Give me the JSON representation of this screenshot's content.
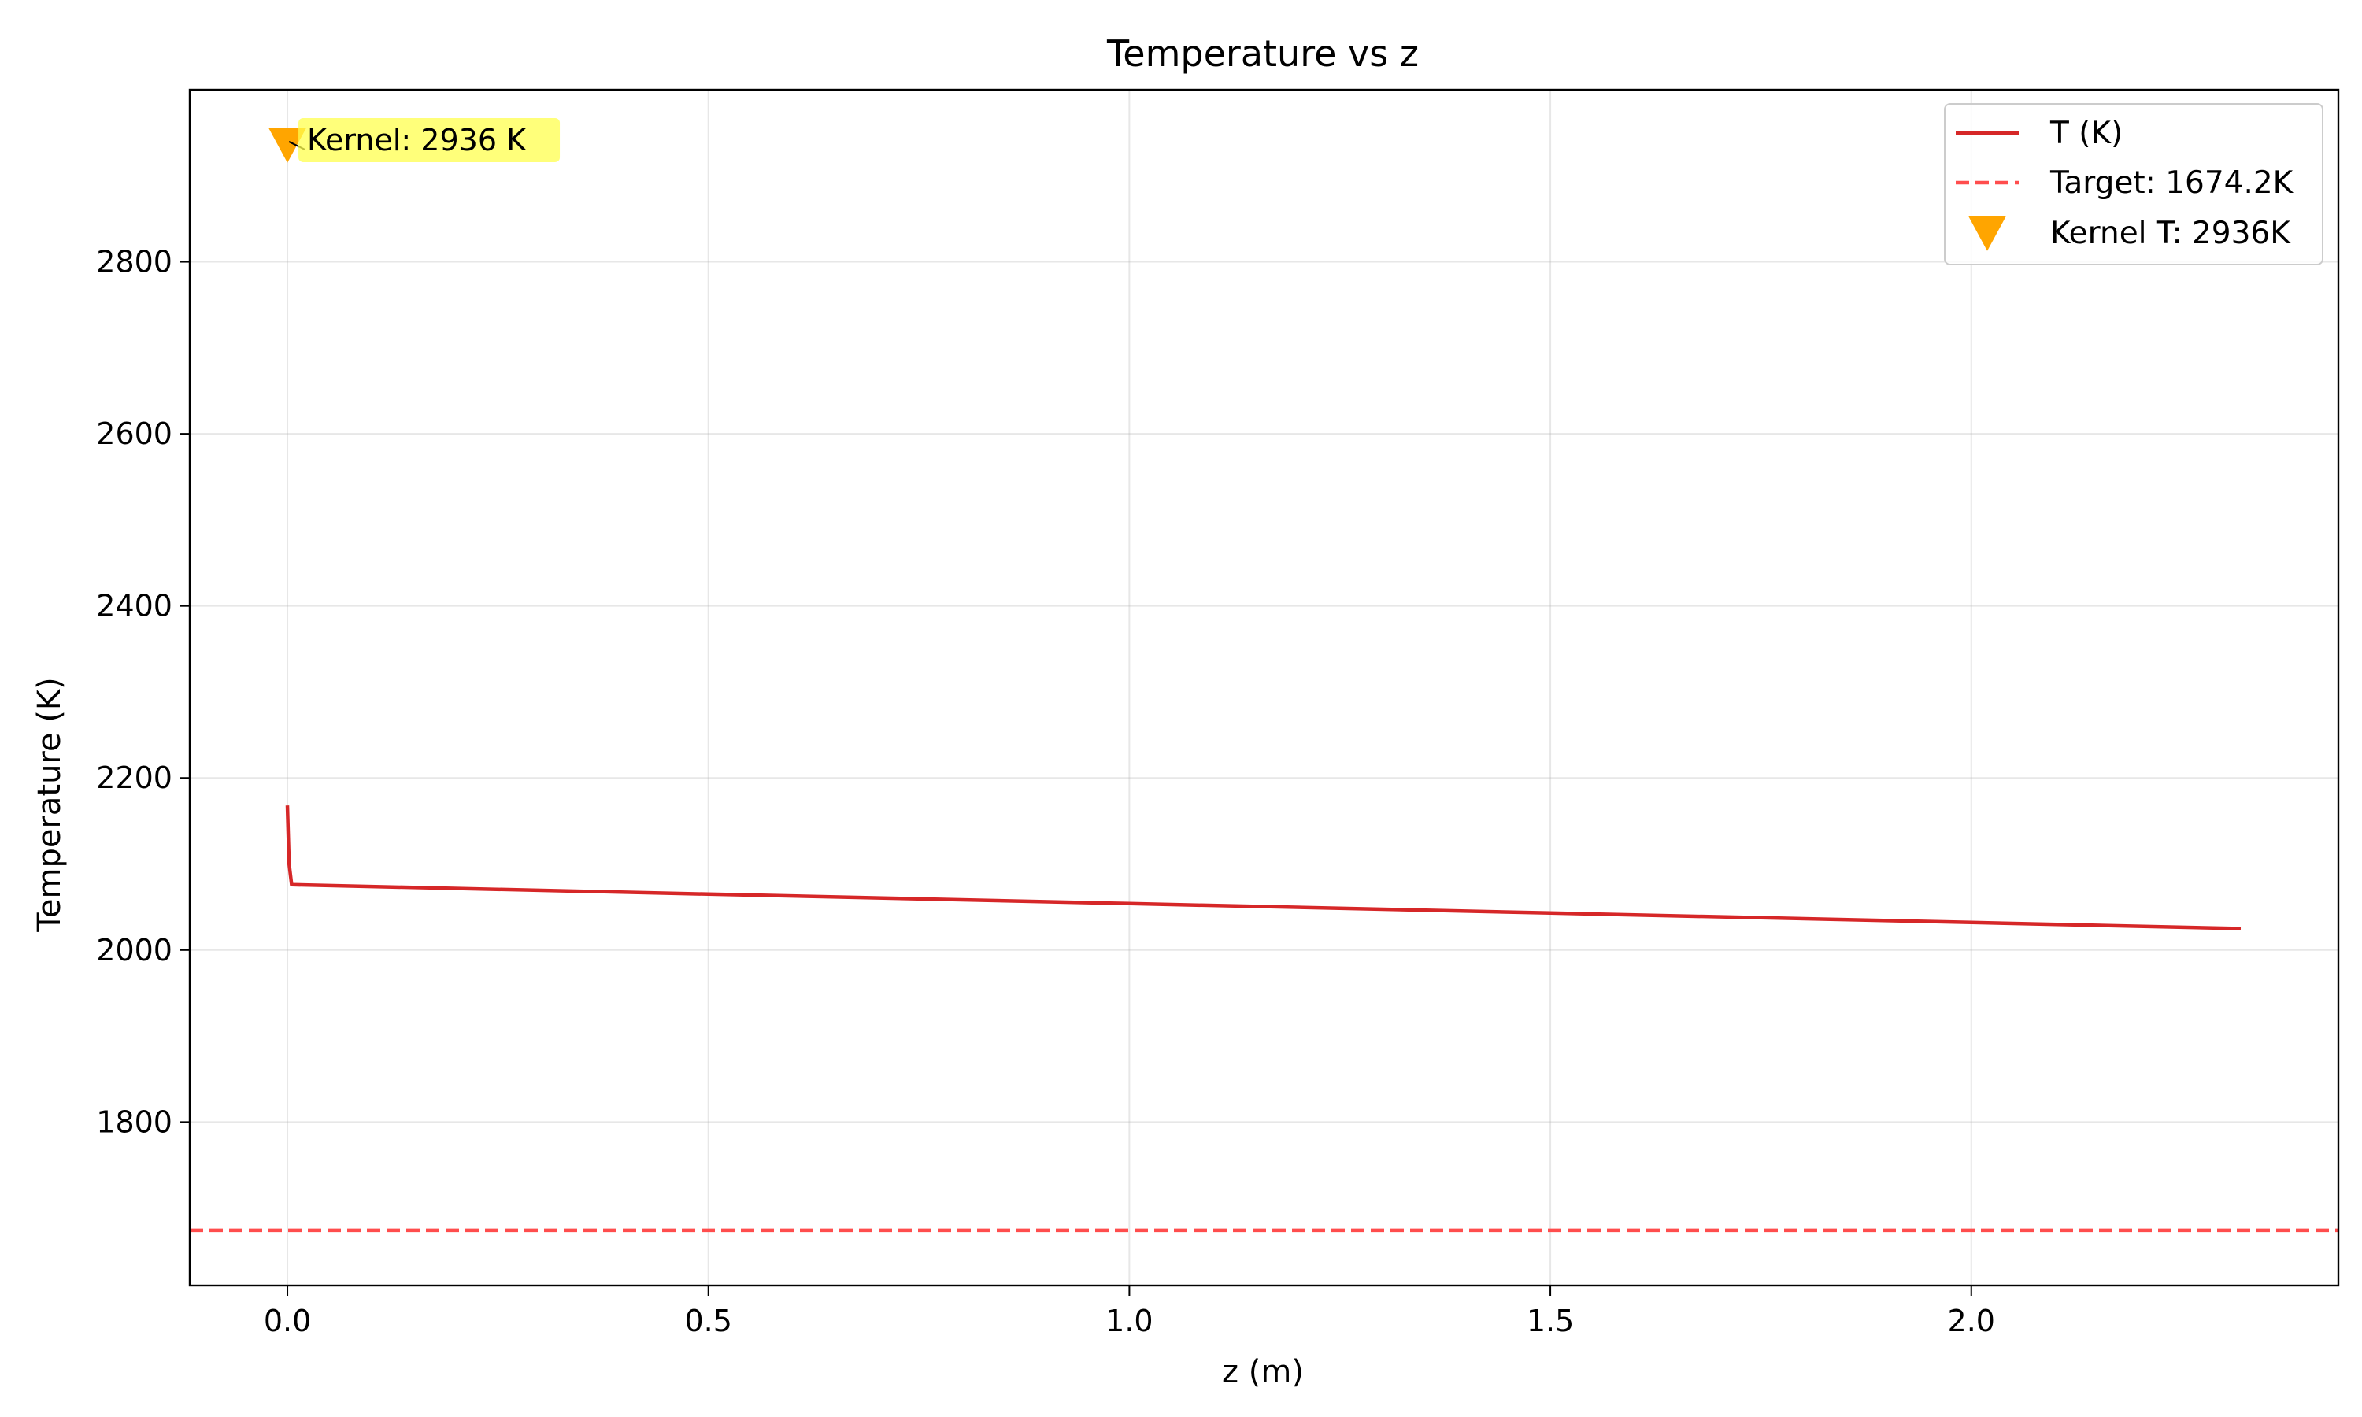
{
  "chart_data": {
    "type": "line",
    "title": "Temperature vs z",
    "xlabel": "z (m)",
    "ylabel": "Temperature (K)",
    "xlim": [
      -0.116,
      2.436
    ],
    "ylim": [
      1610,
      3000
    ],
    "x_ticks": [
      0.0,
      0.5,
      1.0,
      1.5,
      2.0
    ],
    "x_tick_labels": [
      "0.0",
      "0.5",
      "1.0",
      "1.5",
      "2.0"
    ],
    "y_ticks": [
      1800,
      2000,
      2200,
      2400,
      2600,
      2800
    ],
    "y_tick_labels": [
      "1800",
      "2000",
      "2200",
      "2400",
      "2600",
      "2800"
    ],
    "grid": true,
    "legend_position": "top-right",
    "series": [
      {
        "name": "T (K)",
        "style": "solid-line",
        "color": "#d62728",
        "x": [
          0.0,
          0.002,
          0.005,
          0.5,
          1.0,
          1.5,
          2.0,
          2.32
        ],
        "y": [
          2168,
          2100,
          2076,
          2065,
          2054,
          2043,
          2032,
          2025
        ]
      },
      {
        "name": "Target: 1674.2K",
        "style": "dashed-hline",
        "color": "#ff4d4d",
        "y": 1674.2
      },
      {
        "name": "Kernel T: 2936K",
        "style": "triangle-down-marker",
        "color": "#ffa500",
        "x": [
          0.0
        ],
        "y": [
          2936
        ]
      }
    ],
    "annotations": [
      {
        "text": "Kernel: 2936 K",
        "x": 0.0,
        "y": 2936,
        "bg_color": "#ffff4d"
      }
    ]
  }
}
